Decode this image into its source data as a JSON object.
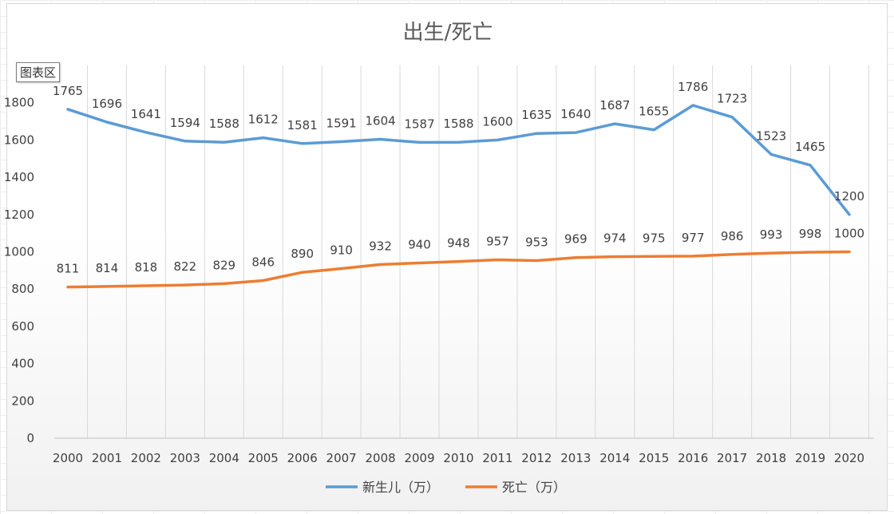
{
  "chart_area_label": "图表区",
  "colors": {
    "series_births": "#5b9bd5",
    "series_deaths": "#ed7d31",
    "grid": "#d9d9d9"
  },
  "chart_data": {
    "type": "line",
    "title": "出生/死亡",
    "x": [
      "2000",
      "2001",
      "2002",
      "2003",
      "2004",
      "2005",
      "2006",
      "2007",
      "2008",
      "2009",
      "2010",
      "2011",
      "2012",
      "2013",
      "2014",
      "2015",
      "2016",
      "2017",
      "2018",
      "2019",
      "2020"
    ],
    "series": [
      {
        "name": "新生儿（万）",
        "values": [
          1765,
          1696,
          1641,
          1594,
          1588,
          1612,
          1581,
          1591,
          1604,
          1587,
          1588,
          1600,
          1635,
          1640,
          1687,
          1655,
          1786,
          1723,
          1523,
          1465,
          1200
        ]
      },
      {
        "name": "死亡（万）",
        "values": [
          811,
          814,
          818,
          822,
          829,
          846,
          890,
          910,
          932,
          940,
          948,
          957,
          953,
          969,
          974,
          975,
          977,
          986,
          993,
          998,
          1000
        ]
      }
    ],
    "yticks": [
      0,
      200,
      400,
      600,
      800,
      1000,
      1200,
      1400,
      1600,
      1800
    ],
    "ylim": [
      0,
      2000
    ],
    "grid": "vertical",
    "legend_position": "bottom",
    "data_labels": true
  }
}
